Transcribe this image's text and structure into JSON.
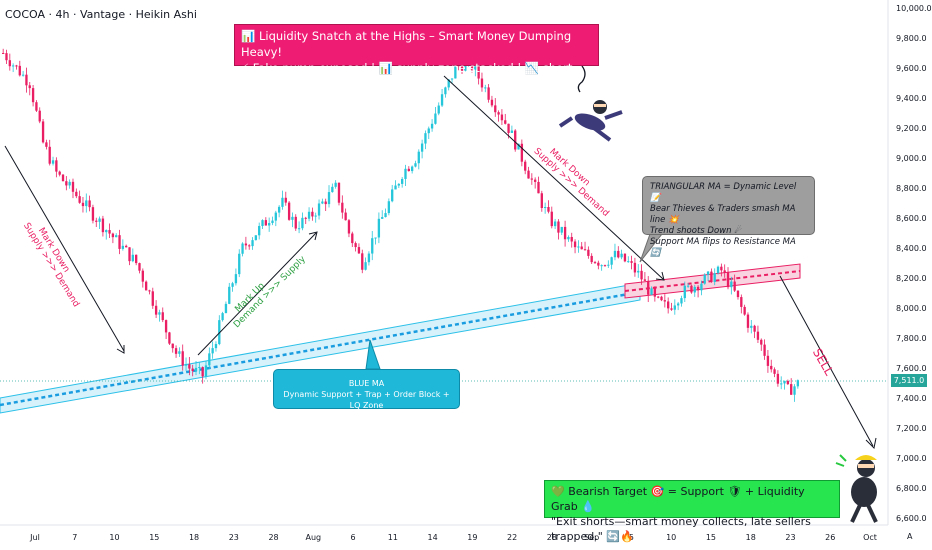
{
  "header": {
    "ticker": "COCOA · 4h · Vantage · Heikin Ashi"
  },
  "chart_data": {
    "type": "candlestick",
    "price_axis": {
      "ticks": [
        "10,000.0",
        "9,800.0",
        "9,600.0",
        "9,400.0",
        "9,200.0",
        "9,000.0",
        "8,800.0",
        "8,600.0",
        "8,400.0",
        "8,200.0",
        "8,000.0",
        "7,800.0",
        "7,600.0",
        "7,400.0",
        "7,200.0",
        "7,000.0",
        "6,800.0",
        "6,600.0"
      ],
      "range": [
        6600,
        10000
      ]
    },
    "time_axis": {
      "ticks": [
        "Jul",
        "7",
        "10",
        "15",
        "18",
        "23",
        "28",
        "Aug",
        "6",
        "11",
        "14",
        "19",
        "22",
        "28",
        "Sep",
        "5",
        "10",
        "15",
        "18",
        "23",
        "26",
        "Oct"
      ]
    },
    "last_price": "7,511.0",
    "ohlc_path": [
      9700,
      9600,
      9500,
      9100,
      8900,
      8800,
      8700,
      8600,
      8500,
      8400,
      8300,
      8100,
      7900,
      7700,
      7600,
      7550,
      7800,
      8100,
      8400,
      8500,
      8600,
      8700,
      8550,
      8600,
      8700,
      8800,
      8500,
      8300,
      8500,
      8700,
      8900,
      9000,
      9200,
      9400,
      9600,
      9650,
      9500,
      9350,
      9200,
      9000,
      8800,
      8600,
      8500,
      8400,
      8350,
      8300,
      8350,
      8300,
      8200,
      8050,
      8000,
      8100,
      8150,
      8200,
      8250,
      8100,
      7900,
      7750,
      7550,
      7450,
      7511
    ],
    "series": [],
    "annotations": {
      "banner_line1": "📊 Liquidity Snatch at the Highs – Smart Money Dumping Heavy!",
      "banner_line2": "⚡ Fake pump exposed | 📊 supply zone stacked | 📉 short setups live",
      "ma_box": [
        "TRIANGULAR MA = Dynamic Level 📝",
        "Bear Thieves & Traders smash MA line 💥",
        "Trend shoots Down ☄",
        "Support MA flips to Resistance MA 🔄"
      ],
      "blue_ma_title": "BLUE MA",
      "blue_ma_sub": "Dynamic Support + Trap + Order Block + LQ Zone",
      "target_line1": "💚 Bearish Target 🎯 = Support 🛡 + Liquidity Grab 💧",
      "target_line2": "\"Exit shorts—smart money collects, late sellers trapped.\" 🔄🔥",
      "mark_down_1": "Mark Down",
      "mark_down_1b": "Supply >>> Demand",
      "mark_up": "Mark Up",
      "mark_up_b": "Demand >>> Supply",
      "mark_down_2": "Mark Down",
      "mark_down_2b": "Supply >>> Demand",
      "sell": "SELL"
    },
    "colors": {
      "up": "#26c6da",
      "down": "#e91e63",
      "blue_ma": "#1eb7e6",
      "red_ma": "#e91e63"
    }
  },
  "footer": {
    "corner_label": "A"
  }
}
